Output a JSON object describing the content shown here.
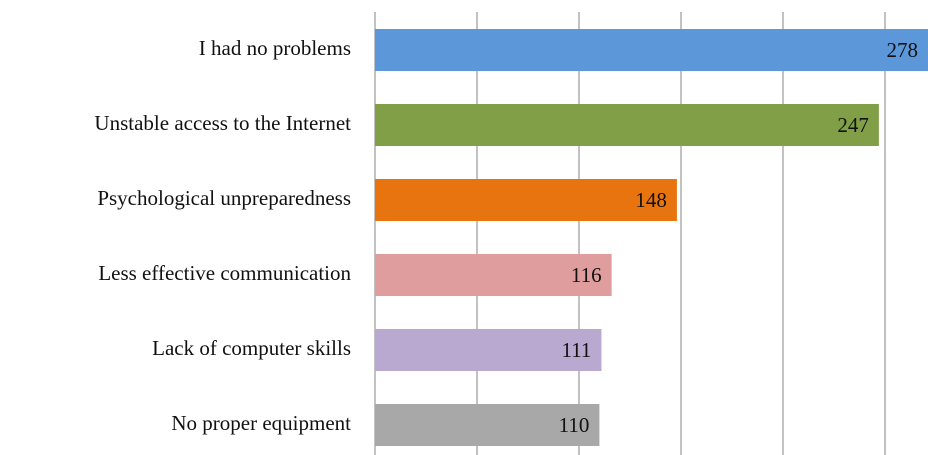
{
  "chart_data": {
    "type": "bar",
    "orientation": "horizontal",
    "categories": [
      "I had no problems",
      "Unstable access to the Internet",
      "Psychological unpreparedness",
      "Less effective communication",
      "Lack of computer skills",
      "No proper equipment"
    ],
    "values": [
      278,
      247,
      148,
      116,
      111,
      110
    ],
    "colors": [
      "#5b97d9",
      "#809f46",
      "#e8740f",
      "#e09d9d",
      "#b9a8cf",
      "#a8a8a8"
    ],
    "xlim": [
      0,
      300
    ],
    "xticks": [
      0,
      50,
      100,
      150,
      200,
      250,
      300
    ],
    "grid": true
  }
}
